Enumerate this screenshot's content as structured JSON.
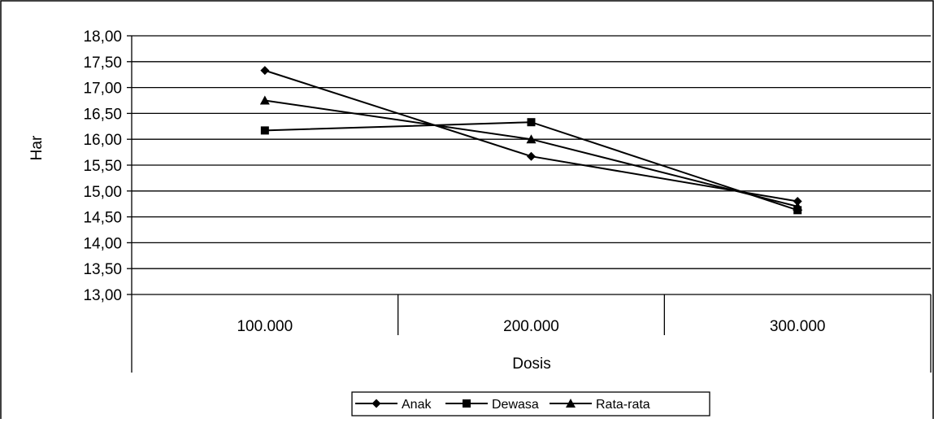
{
  "chart_data": {
    "type": "line",
    "title": "",
    "xlabel": "Dosis",
    "ylabel": "Har",
    "categories": [
      "100.000",
      "200.000",
      "300.000"
    ],
    "ylim": [
      13.0,
      18.0
    ],
    "yticks": [
      "13,00",
      "13,50",
      "14,00",
      "14,50",
      "15,00",
      "15,50",
      "16,00",
      "16,50",
      "17,00",
      "17,50",
      "18,00"
    ],
    "ytick_values": [
      13.0,
      13.5,
      14.0,
      14.5,
      15.0,
      15.5,
      16.0,
      16.5,
      17.0,
      17.5,
      18.0
    ],
    "grid": "horizontal",
    "legend_position": "bottom",
    "series": [
      {
        "name": "Anak",
        "marker": "diamond",
        "values": [
          17.33,
          15.67,
          14.8
        ]
      },
      {
        "name": "Dewasa",
        "marker": "square",
        "values": [
          16.17,
          16.33,
          14.63
        ]
      },
      {
        "name": "Rata-rata",
        "marker": "triangle",
        "values": [
          16.75,
          16.0,
          14.7
        ]
      }
    ],
    "colors": {
      "line": "#000000",
      "background": "#ffffff"
    }
  }
}
